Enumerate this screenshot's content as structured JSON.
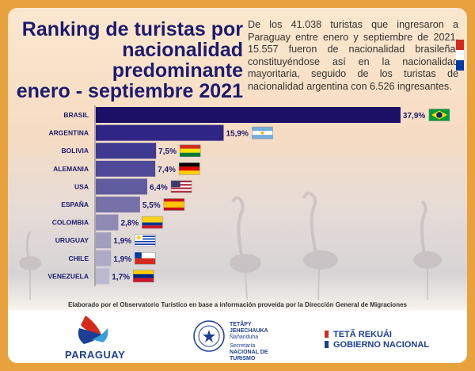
{
  "title_lines": [
    "Ranking de turistas por",
    "nacionalidad",
    "predominante",
    "enero - septiembre 2021"
  ],
  "description": "De los 41.038 turistas que ingresaron a Paraguay entre enero y septiembre de 2021, 15.557 fueron de nacionalidad brasileña, constituyéndose así en la nacionalidad mayoritaria, seguido de los turistas de nacionalidad argentina con 6.526 ingresantes.",
  "chart_data": {
    "type": "bar",
    "orientation": "horizontal",
    "categories": [
      "BRASIL",
      "ARGENTINA",
      "BOLIVIA",
      "ALEMANIA",
      "USA",
      "ESPAÑA",
      "COLOMBIA",
      "URUGUAY",
      "CHILE",
      "VENEZUELA"
    ],
    "values": [
      37.9,
      15.9,
      7.5,
      7.4,
      6.4,
      5.5,
      2.8,
      1.9,
      1.9,
      1.7
    ],
    "value_labels": [
      "37,9%",
      "15,9%",
      "7,5%",
      "7,4%",
      "6,4%",
      "5,5%",
      "2,8%",
      "1,9%",
      "1,9%",
      "1,7%"
    ],
    "flags": [
      "brazil-flag",
      "argentina-flag",
      "bolivia-flag",
      "germany-flag",
      "usa-flag",
      "spain-flag",
      "colombia-flag",
      "uruguay-flag",
      "chile-flag",
      "venezuela-flag"
    ],
    "bar_colors": [
      "#1c1066",
      "#2e2585",
      "#3f3a91",
      "#4f4a98",
      "#5f5b9f",
      "#7671a9",
      "#8e8ab5",
      "#a19dbf",
      "#aeaac7",
      "#bcb8d0"
    ],
    "xlim": [
      0,
      40
    ]
  },
  "source_note": "Elaborado por el Observatorio Turístico en base a información proveída por la Dirección General de Migraciones",
  "footer": {
    "paraguay_logo": "PARAGUAY",
    "seal_lines": [
      "TETÃPY",
      "JEHECHAUKA",
      "Ñañanduha",
      "Secretaría",
      "NACIONAL DE",
      "TURISMO"
    ],
    "gov_lines": [
      "TETÃ REKUÁI",
      "GOBIERNO NACIONAL"
    ]
  },
  "colors": {
    "title": "#1c1b6e",
    "frame": "#e8a23d",
    "footer_blue": "#1c3f95",
    "red": "#d52b1e"
  }
}
